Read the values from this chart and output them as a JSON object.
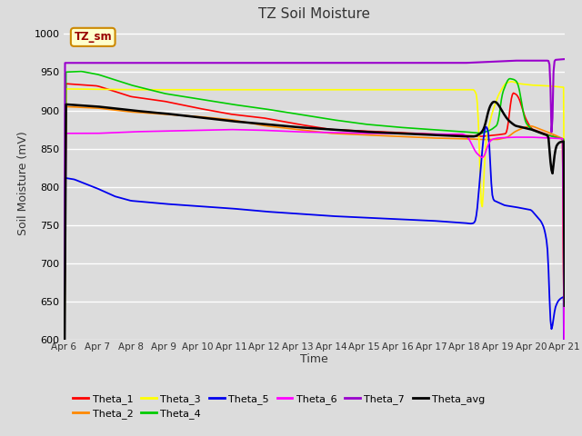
{
  "title": "TZ Soil Moisture",
  "xlabel": "Time",
  "ylabel": "Soil Moisture (mV)",
  "ylim": [
    600,
    1010
  ],
  "background_color": "#dcdcdc",
  "plot_bg": "#dcdcdc",
  "annotation_text": "TZ_sm",
  "annotation_box_color": "#ffffcc",
  "annotation_border_color": "#cc8800",
  "annotation_text_color": "#990000",
  "colors": {
    "Theta_1": "#ff0000",
    "Theta_2": "#ff8800",
    "Theta_3": "#ffff00",
    "Theta_4": "#00cc00",
    "Theta_5": "#0000ee",
    "Theta_6": "#ff00ff",
    "Theta_7": "#9900cc",
    "Theta_avg": "#000000"
  },
  "x_tick_labels": [
    "Apr 6",
    "Apr 7",
    "Apr 8",
    "Apr 9",
    "Apr 10",
    "Apr 11",
    "Apr 12",
    "Apr 13",
    "Apr 14",
    "Apr 15",
    "Apr 16",
    "Apr 17",
    "Apr 18",
    "Apr 19",
    "Apr 20",
    "Apr 21"
  ],
  "figsize": [
    6.4,
    4.8
  ],
  "dpi": 100
}
